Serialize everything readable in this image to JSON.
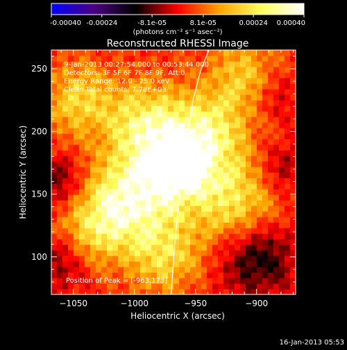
{
  "figure": {
    "date_stamp": "16-Jan-2013 05:53"
  },
  "colorbar": {
    "tick_labels": [
      "-0.00040",
      "-0.00024",
      "-8.1e-05",
      "8.1e-05",
      "0.00024",
      "0.00040"
    ],
    "ticks": [
      -0.0004,
      -0.00024,
      -8.1e-05,
      8.1e-05,
      0.00024,
      0.0004
    ],
    "range": [
      -0.0004,
      0.0004
    ],
    "unit_label": "(photons cm⁻² s⁻¹ asec⁻²)",
    "stops": [
      "#0000ff",
      "#4b0082",
      "#000000",
      "#ff0000",
      "#ffa500",
      "#ffff60",
      "#ffffff"
    ]
  },
  "chart_data": {
    "type": "heatmap",
    "title": "Reconstructed RHESSI Image",
    "xlabel": "Heliocentric X (arcsec)",
    "ylabel": "Heliocentric Y (arcsec)",
    "xlim": [
      -1068,
      -868
    ],
    "ylim": [
      70,
      265
    ],
    "x_ticks": [
      -1050,
      -1000,
      -950,
      -900
    ],
    "y_ticks": [
      100,
      150,
      200,
      250
    ],
    "x_tick_labels": [
      "−1050",
      "−1000",
      "−950",
      "−900"
    ],
    "y_tick_labels": [
      "100",
      "150",
      "200",
      "250"
    ],
    "grid": false,
    "annotations": [
      " 9-Jan-2013 00:27:54.000 to 00:53:44.000",
      "Detectors: 3F 5F 6F 7F 8F 9F, Att:0",
      "Energy Range: 12.0 - 25.0 keV",
      "Clean    Total counts: 7.78E+03"
    ],
    "peak_label": "Position of Peak = [-963,173]",
    "peak": [
      -963,
      173
    ],
    "limb_curve": {
      "x": [
        -970,
        -967,
        -963,
        -958,
        -952,
        -946,
        -939
      ],
      "y": [
        70,
        110,
        150,
        190,
        225,
        248,
        265
      ]
    },
    "blobs": [
      {
        "x": -963,
        "y": 173,
        "amp": 1.0,
        "sigma": 18
      },
      {
        "x": -1000,
        "y": 148,
        "amp": 0.8,
        "sigma": 25
      },
      {
        "x": -990,
        "y": 205,
        "amp": 0.65,
        "sigma": 22
      },
      {
        "x": -940,
        "y": 200,
        "amp": 0.6,
        "sigma": 22
      },
      {
        "x": -1030,
        "y": 125,
        "amp": 0.45,
        "sigma": 20
      },
      {
        "x": -920,
        "y": 145,
        "amp": 0.55,
        "sigma": 25
      },
      {
        "x": -1045,
        "y": 225,
        "amp": 0.45,
        "sigma": 20
      },
      {
        "x": -910,
        "y": 245,
        "amp": 0.4,
        "sigma": 20
      },
      {
        "x": -975,
        "y": 100,
        "amp": 0.45,
        "sigma": 20
      },
      {
        "x": -900,
        "y": 100,
        "amp": -0.45,
        "sigma": 22
      },
      {
        "x": -1060,
        "y": 160,
        "amp": -0.3,
        "sigma": 15
      },
      {
        "x": -1060,
        "y": 95,
        "amp": -0.25,
        "sigma": 15
      },
      {
        "x": -880,
        "y": 170,
        "amp": -0.25,
        "sigma": 15
      },
      {
        "x": -885,
        "y": 230,
        "amp": -0.2,
        "sigma": 15
      }
    ]
  }
}
